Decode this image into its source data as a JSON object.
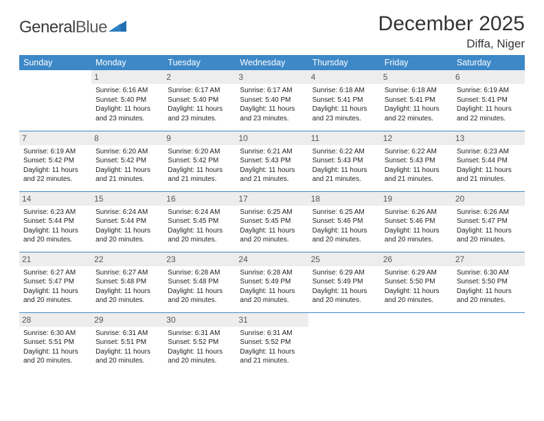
{
  "brand": {
    "word1": "General",
    "word2": "Blue"
  },
  "title": "December 2025",
  "location": "Diffa, Niger",
  "colors": {
    "header_bg": "#3d88c7",
    "header_fg": "#ffffff",
    "daynum_bg": "#ededed",
    "daynum_fg": "#555555",
    "row_divider": "#3d88c7",
    "text": "#222222",
    "logo_gray": "#5a5a5a",
    "logo_blue": "#1f6fb2"
  },
  "weekdays": [
    "Sunday",
    "Monday",
    "Tuesday",
    "Wednesday",
    "Thursday",
    "Friday",
    "Saturday"
  ],
  "weeks": [
    [
      {
        "empty": true
      },
      {
        "d": "1",
        "sr": "Sunrise: 6:16 AM",
        "ss": "Sunset: 5:40 PM",
        "dl1": "Daylight: 11 hours",
        "dl2": "and 23 minutes."
      },
      {
        "d": "2",
        "sr": "Sunrise: 6:17 AM",
        "ss": "Sunset: 5:40 PM",
        "dl1": "Daylight: 11 hours",
        "dl2": "and 23 minutes."
      },
      {
        "d": "3",
        "sr": "Sunrise: 6:17 AM",
        "ss": "Sunset: 5:40 PM",
        "dl1": "Daylight: 11 hours",
        "dl2": "and 23 minutes."
      },
      {
        "d": "4",
        "sr": "Sunrise: 6:18 AM",
        "ss": "Sunset: 5:41 PM",
        "dl1": "Daylight: 11 hours",
        "dl2": "and 23 minutes."
      },
      {
        "d": "5",
        "sr": "Sunrise: 6:18 AM",
        "ss": "Sunset: 5:41 PM",
        "dl1": "Daylight: 11 hours",
        "dl2": "and 22 minutes."
      },
      {
        "d": "6",
        "sr": "Sunrise: 6:19 AM",
        "ss": "Sunset: 5:41 PM",
        "dl1": "Daylight: 11 hours",
        "dl2": "and 22 minutes."
      }
    ],
    [
      {
        "d": "7",
        "sr": "Sunrise: 6:19 AM",
        "ss": "Sunset: 5:42 PM",
        "dl1": "Daylight: 11 hours",
        "dl2": "and 22 minutes."
      },
      {
        "d": "8",
        "sr": "Sunrise: 6:20 AM",
        "ss": "Sunset: 5:42 PM",
        "dl1": "Daylight: 11 hours",
        "dl2": "and 21 minutes."
      },
      {
        "d": "9",
        "sr": "Sunrise: 6:20 AM",
        "ss": "Sunset: 5:42 PM",
        "dl1": "Daylight: 11 hours",
        "dl2": "and 21 minutes."
      },
      {
        "d": "10",
        "sr": "Sunrise: 6:21 AM",
        "ss": "Sunset: 5:43 PM",
        "dl1": "Daylight: 11 hours",
        "dl2": "and 21 minutes."
      },
      {
        "d": "11",
        "sr": "Sunrise: 6:22 AM",
        "ss": "Sunset: 5:43 PM",
        "dl1": "Daylight: 11 hours",
        "dl2": "and 21 minutes."
      },
      {
        "d": "12",
        "sr": "Sunrise: 6:22 AM",
        "ss": "Sunset: 5:43 PM",
        "dl1": "Daylight: 11 hours",
        "dl2": "and 21 minutes."
      },
      {
        "d": "13",
        "sr": "Sunrise: 6:23 AM",
        "ss": "Sunset: 5:44 PM",
        "dl1": "Daylight: 11 hours",
        "dl2": "and 21 minutes."
      }
    ],
    [
      {
        "d": "14",
        "sr": "Sunrise: 6:23 AM",
        "ss": "Sunset: 5:44 PM",
        "dl1": "Daylight: 11 hours",
        "dl2": "and 20 minutes."
      },
      {
        "d": "15",
        "sr": "Sunrise: 6:24 AM",
        "ss": "Sunset: 5:44 PM",
        "dl1": "Daylight: 11 hours",
        "dl2": "and 20 minutes."
      },
      {
        "d": "16",
        "sr": "Sunrise: 6:24 AM",
        "ss": "Sunset: 5:45 PM",
        "dl1": "Daylight: 11 hours",
        "dl2": "and 20 minutes."
      },
      {
        "d": "17",
        "sr": "Sunrise: 6:25 AM",
        "ss": "Sunset: 5:45 PM",
        "dl1": "Daylight: 11 hours",
        "dl2": "and 20 minutes."
      },
      {
        "d": "18",
        "sr": "Sunrise: 6:25 AM",
        "ss": "Sunset: 5:46 PM",
        "dl1": "Daylight: 11 hours",
        "dl2": "and 20 minutes."
      },
      {
        "d": "19",
        "sr": "Sunrise: 6:26 AM",
        "ss": "Sunset: 5:46 PM",
        "dl1": "Daylight: 11 hours",
        "dl2": "and 20 minutes."
      },
      {
        "d": "20",
        "sr": "Sunrise: 6:26 AM",
        "ss": "Sunset: 5:47 PM",
        "dl1": "Daylight: 11 hours",
        "dl2": "and 20 minutes."
      }
    ],
    [
      {
        "d": "21",
        "sr": "Sunrise: 6:27 AM",
        "ss": "Sunset: 5:47 PM",
        "dl1": "Daylight: 11 hours",
        "dl2": "and 20 minutes."
      },
      {
        "d": "22",
        "sr": "Sunrise: 6:27 AM",
        "ss": "Sunset: 5:48 PM",
        "dl1": "Daylight: 11 hours",
        "dl2": "and 20 minutes."
      },
      {
        "d": "23",
        "sr": "Sunrise: 6:28 AM",
        "ss": "Sunset: 5:48 PM",
        "dl1": "Daylight: 11 hours",
        "dl2": "and 20 minutes."
      },
      {
        "d": "24",
        "sr": "Sunrise: 6:28 AM",
        "ss": "Sunset: 5:49 PM",
        "dl1": "Daylight: 11 hours",
        "dl2": "and 20 minutes."
      },
      {
        "d": "25",
        "sr": "Sunrise: 6:29 AM",
        "ss": "Sunset: 5:49 PM",
        "dl1": "Daylight: 11 hours",
        "dl2": "and 20 minutes."
      },
      {
        "d": "26",
        "sr": "Sunrise: 6:29 AM",
        "ss": "Sunset: 5:50 PM",
        "dl1": "Daylight: 11 hours",
        "dl2": "and 20 minutes."
      },
      {
        "d": "27",
        "sr": "Sunrise: 6:30 AM",
        "ss": "Sunset: 5:50 PM",
        "dl1": "Daylight: 11 hours",
        "dl2": "and 20 minutes."
      }
    ],
    [
      {
        "d": "28",
        "sr": "Sunrise: 6:30 AM",
        "ss": "Sunset: 5:51 PM",
        "dl1": "Daylight: 11 hours",
        "dl2": "and 20 minutes."
      },
      {
        "d": "29",
        "sr": "Sunrise: 6:31 AM",
        "ss": "Sunset: 5:51 PM",
        "dl1": "Daylight: 11 hours",
        "dl2": "and 20 minutes."
      },
      {
        "d": "30",
        "sr": "Sunrise: 6:31 AM",
        "ss": "Sunset: 5:52 PM",
        "dl1": "Daylight: 11 hours",
        "dl2": "and 20 minutes."
      },
      {
        "d": "31",
        "sr": "Sunrise: 6:31 AM",
        "ss": "Sunset: 5:52 PM",
        "dl1": "Daylight: 11 hours",
        "dl2": "and 21 minutes."
      },
      {
        "empty": true
      },
      {
        "empty": true
      },
      {
        "empty": true
      }
    ]
  ]
}
